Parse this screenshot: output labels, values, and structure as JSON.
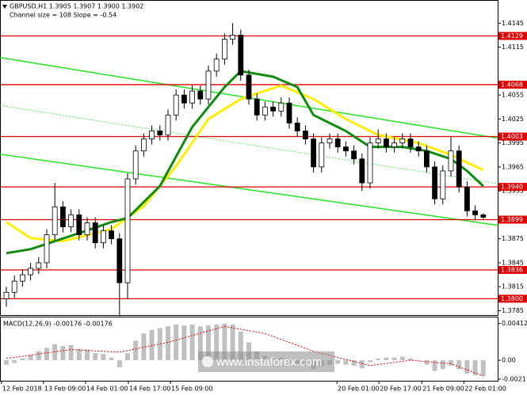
{
  "chart_data": {
    "type": "candlestick",
    "title": "GBPUSD,H1  1.3905 1.3907 1.3900 1.3902",
    "subtitle": "Channel size = 108 Slope = -0.54",
    "watermark": "www.instaforex.com",
    "ylim": [
      1.3772,
      1.4174
    ],
    "yticks": [
      1.4145,
      1.4115,
      1.4055,
      1.4025,
      1.3995,
      1.3965,
      1.3935,
      1.3875,
      1.3845,
      1.3815,
      1.3785
    ],
    "xticks": [
      {
        "value": -0.6,
        "label": "12 Feb 2018"
      },
      {
        "value": 4.6,
        "label": "13 Feb 09:00"
      },
      {
        "value": 9.8,
        "label": "14 Feb 01:00"
      },
      {
        "value": 15.1,
        "label": "14 Feb 17:00"
      },
      {
        "value": 20.3,
        "label": "15 Feb 09:00"
      },
      {
        "value": 40.9,
        "label": "20 Feb 01:00"
      },
      {
        "value": 46.1,
        "label": "20 Feb 17:00"
      },
      {
        "value": 51.4,
        "label": "21 Feb 09:00"
      },
      {
        "value": 56.6,
        "label": "22 Feb 01:00"
      }
    ],
    "candles": [
      [
        1.38,
        1.3815,
        1.379,
        1.3808
      ],
      [
        1.3808,
        1.3829,
        1.3801,
        1.3822
      ],
      [
        1.3822,
        1.3837,
        1.3815,
        1.383
      ],
      [
        1.383,
        1.3845,
        1.3823,
        1.3838
      ],
      [
        1.3838,
        1.3852,
        1.3831,
        1.3845
      ],
      [
        1.3845,
        1.3887,
        1.3838,
        1.388
      ],
      [
        1.388,
        1.3945,
        1.3873,
        1.3915
      ],
      [
        1.3915,
        1.3922,
        1.3883,
        1.389
      ],
      [
        1.389,
        1.3912,
        1.3883,
        1.3905
      ],
      [
        1.3905,
        1.3912,
        1.3873,
        1.388
      ],
      [
        1.388,
        1.3902,
        1.3873,
        1.3895
      ],
      [
        1.3895,
        1.3902,
        1.3863,
        1.387
      ],
      [
        1.387,
        1.3892,
        1.3863,
        1.3885
      ],
      [
        1.3885,
        1.3892,
        1.3868,
        1.3875
      ],
      [
        1.3875,
        1.3882,
        1.3778,
        1.382
      ],
      [
        1.382,
        1.3957,
        1.38,
        1.395
      ],
      [
        1.395,
        1.3992,
        1.3943,
        1.3985
      ],
      [
        1.3985,
        1.4007,
        1.3978,
        1.4
      ],
      [
        1.4,
        1.4017,
        1.3993,
        1.401
      ],
      [
        1.401,
        1.4017,
        1.3998,
        1.4005
      ],
      [
        1.4005,
        1.4037,
        1.3998,
        1.403
      ],
      [
        1.403,
        1.4062,
        1.4023,
        1.4055
      ],
      [
        1.4055,
        1.4062,
        1.4038,
        1.4045
      ],
      [
        1.4045,
        1.4067,
        1.4038,
        1.406
      ],
      [
        1.406,
        1.4067,
        1.4043,
        1.405
      ],
      [
        1.405,
        1.4092,
        1.4043,
        1.4085
      ],
      [
        1.4085,
        1.4107,
        1.4078,
        1.41
      ],
      [
        1.41,
        1.4132,
        1.4093,
        1.4125
      ],
      [
        1.4125,
        1.4145,
        1.4118,
        1.413
      ],
      [
        1.413,
        1.4137,
        1.4073,
        1.408
      ],
      [
        1.408,
        1.4087,
        1.4043,
        1.405
      ],
      [
        1.405,
        1.4057,
        1.4023,
        1.403
      ],
      [
        1.403,
        1.4047,
        1.4023,
        1.404
      ],
      [
        1.404,
        1.4047,
        1.4028,
        1.4035
      ],
      [
        1.4035,
        1.4052,
        1.4028,
        1.4045
      ],
      [
        1.4045,
        1.4052,
        1.4013,
        1.402
      ],
      [
        1.402,
        1.4027,
        1.4003,
        1.401
      ],
      [
        1.401,
        1.4017,
        1.3993,
        1.4
      ],
      [
        1.4,
        1.4007,
        1.3958,
        1.3965
      ],
      [
        1.3965,
        1.4002,
        1.3958,
        1.3995
      ],
      [
        1.3995,
        1.4007,
        1.3988,
        1.4
      ],
      [
        1.4,
        1.4007,
        1.3983,
        1.399
      ],
      [
        1.399,
        1.3997,
        1.3978,
        1.3985
      ],
      [
        1.3985,
        1.3992,
        1.3968,
        1.3975
      ],
      [
        1.3975,
        1.3982,
        1.3935,
        1.3945
      ],
      [
        1.3945,
        1.4002,
        1.3938,
        1.3995
      ],
      [
        1.3995,
        1.4012,
        1.3988,
        1.4
      ],
      [
        1.4,
        1.4007,
        1.3983,
        1.399
      ],
      [
        1.399,
        1.4002,
        1.3983,
        1.3995
      ],
      [
        1.3995,
        1.4007,
        1.3988,
        1.4
      ],
      [
        1.4,
        1.4007,
        1.3983,
        1.399
      ],
      [
        1.399,
        1.3997,
        1.3978,
        1.3985
      ],
      [
        1.3985,
        1.3992,
        1.3958,
        1.3965
      ],
      [
        1.3965,
        1.3972,
        1.3918,
        1.3925
      ],
      [
        1.3925,
        1.3967,
        1.3918,
        1.396
      ],
      [
        1.396,
        1.4003,
        1.3953,
        1.3985
      ],
      [
        1.3985,
        1.3992,
        1.3933,
        1.394
      ],
      [
        1.394,
        1.3947,
        1.3903,
        1.391
      ],
      [
        1.391,
        1.3917,
        1.3898,
        1.3905
      ],
      [
        1.3905,
        1.3907,
        1.39,
        1.3902
      ]
    ],
    "lines": [
      {
        "color": "#ffee00",
        "x": [
          0,
          3,
          7,
          13,
          17,
          21,
          25,
          29,
          34,
          38,
          42,
          46,
          51,
          55,
          59
        ],
        "values": [
          1.3896,
          1.3876,
          1.3872,
          1.3887,
          1.3916,
          1.3966,
          1.4025,
          1.405,
          1.4067,
          1.405,
          1.4025,
          1.4005,
          1.3995,
          1.398,
          1.3961
        ]
      },
      {
        "color": "#118a11",
        "x": [
          0,
          3,
          9,
          13,
          15,
          19,
          23,
          27,
          29,
          33,
          36,
          38,
          42,
          45,
          49,
          52,
          55,
          57,
          59
        ],
        "values": [
          1.3857,
          1.3862,
          1.3882,
          1.3896,
          1.3901,
          1.3941,
          1.4015,
          1.4065,
          1.4085,
          1.4078,
          1.4065,
          1.403,
          1.401,
          1.399,
          1.399,
          1.3985,
          1.3975,
          1.396,
          1.3941
        ]
      }
    ],
    "trendlines": [
      {
        "color": "#33e033",
        "dash": false,
        "x": [
          -0.8,
          60.8
        ],
        "values": [
          1.4102,
          1.4001
        ]
      },
      {
        "color": "#33e033",
        "dash": true,
        "x": [
          -0.8,
          60.8
        ],
        "values": [
          1.4042,
          1.3944
        ]
      },
      {
        "color": "#33e033",
        "dash": false,
        "x": [
          -0.8,
          60.8
        ],
        "values": [
          1.3981,
          1.3892
        ]
      }
    ],
    "level_color": "#e00000",
    "levels": [
      {
        "value": 1.4129,
        "label": "1.4129"
      },
      {
        "value": 1.4068,
        "label": "1.4068"
      },
      {
        "value": 1.4003,
        "label": "1.4003"
      },
      {
        "value": 1.394,
        "label": "1.3940"
      },
      {
        "value": 1.3899,
        "label": "1.3899"
      },
      {
        "value": 1.3836,
        "label": "1.3836"
      },
      {
        "value": 1.38,
        "label": "1.3800"
      }
    ],
    "macd": {
      "title": "MACD(12,26,9) -0.00176 -0.00176",
      "ylim": [
        -0.0023,
        0.0048
      ],
      "yticks": [
        0.00412,
        {
          "value": 0,
          "label": "0.00"
        },
        -0.00211
      ],
      "color": "#c0c0c0",
      "values": [
        -0.0005,
        -0.0003,
        0.0002,
        0.0006,
        0.001,
        0.0014,
        0.0018,
        0.0016,
        0.0017,
        0.0013,
        0.0012,
        0.0008,
        0.0007,
        0.0003,
        -0.0008,
        0.0008,
        0.0022,
        0.003,
        0.0034,
        0.0036,
        0.0038,
        0.004,
        0.0039,
        0.004,
        0.0038,
        0.0039,
        0.004,
        0.0041,
        0.004,
        0.0032,
        0.002,
        0.001,
        0.0005,
        0.0002,
        0.0003,
        -0.0002,
        -0.0004,
        -0.0006,
        -0.001,
        -0.0007,
        -0.0005,
        -0.0004,
        -0.0005,
        -0.0006,
        -0.0009,
        -0.0002,
        0.0002,
        0.0003,
        0.0003,
        0.0004,
        0.0002,
        0.0,
        -0.0005,
        -0.0012,
        -0.001,
        -0.0006,
        -0.001,
        -0.0015,
        -0.0017,
        -0.00176
      ],
      "signal": {
        "color": "#e00000",
        "x": [
          0,
          8,
          14,
          20,
          27,
          32,
          38,
          45,
          50,
          55,
          59
        ],
        "values": [
          0.0002,
          0.0012,
          0.0009,
          0.002,
          0.0038,
          0.003,
          0.001,
          -0.0006,
          0.0,
          -0.0004,
          -0.00176
        ]
      }
    }
  }
}
